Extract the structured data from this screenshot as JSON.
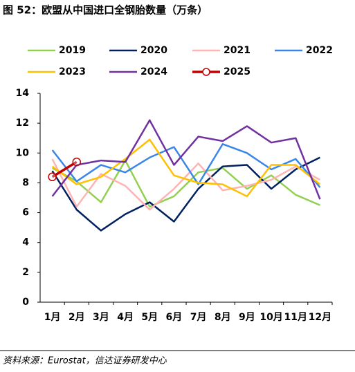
{
  "chart_data": {
    "type": "line",
    "title": "图 52：欧盟从中国进口全钢胎数量（万条）",
    "source": "资料来源：Eurostat，信达证券研发中心",
    "categories": [
      "1月",
      "2月",
      "3月",
      "4月",
      "5月",
      "6月",
      "7月",
      "8月",
      "9月",
      "10月",
      "11月",
      "12月"
    ],
    "series": [
      {
        "name": "2019",
        "color": "#92d050",
        "values": [
          9.0,
          8.1,
          6.7,
          9.5,
          6.4,
          7.1,
          8.7,
          9.0,
          7.6,
          8.5,
          7.2,
          6.5
        ]
      },
      {
        "name": "2020",
        "color": "#002060",
        "values": [
          8.8,
          6.2,
          4.8,
          5.9,
          6.7,
          5.4,
          7.6,
          9.1,
          9.2,
          7.6,
          8.9,
          9.7
        ]
      },
      {
        "name": "2021",
        "color": "#ffb3b3",
        "values": [
          9.6,
          6.4,
          8.6,
          7.8,
          6.2,
          7.6,
          9.3,
          7.5,
          7.8,
          8.2,
          9.1,
          8.2
        ]
      },
      {
        "name": "2022",
        "color": "#3a86e8",
        "values": [
          10.2,
          8.1,
          9.2,
          8.7,
          9.7,
          10.4,
          7.9,
          10.6,
          10.0,
          8.9,
          9.6,
          7.7
        ]
      },
      {
        "name": "2023",
        "color": "#ffc000",
        "values": [
          9.1,
          7.9,
          8.4,
          9.6,
          10.9,
          8.5,
          8.0,
          7.9,
          7.1,
          9.2,
          9.2,
          7.9
        ]
      },
      {
        "name": "2024",
        "color": "#7030a0",
        "values": [
          7.1,
          9.2,
          9.5,
          9.4,
          12.2,
          9.2,
          11.1,
          10.8,
          11.8,
          10.7,
          11.0,
          6.9
        ]
      },
      {
        "name": "2025",
        "color": "#c00000",
        "marker": "circle",
        "values": [
          8.4,
          9.4,
          null,
          null,
          null,
          null,
          null,
          null,
          null,
          null,
          null,
          null
        ]
      }
    ],
    "ylim": [
      0,
      14
    ],
    "yticks": [
      0,
      2,
      4,
      6,
      8,
      10,
      12,
      14
    ]
  }
}
